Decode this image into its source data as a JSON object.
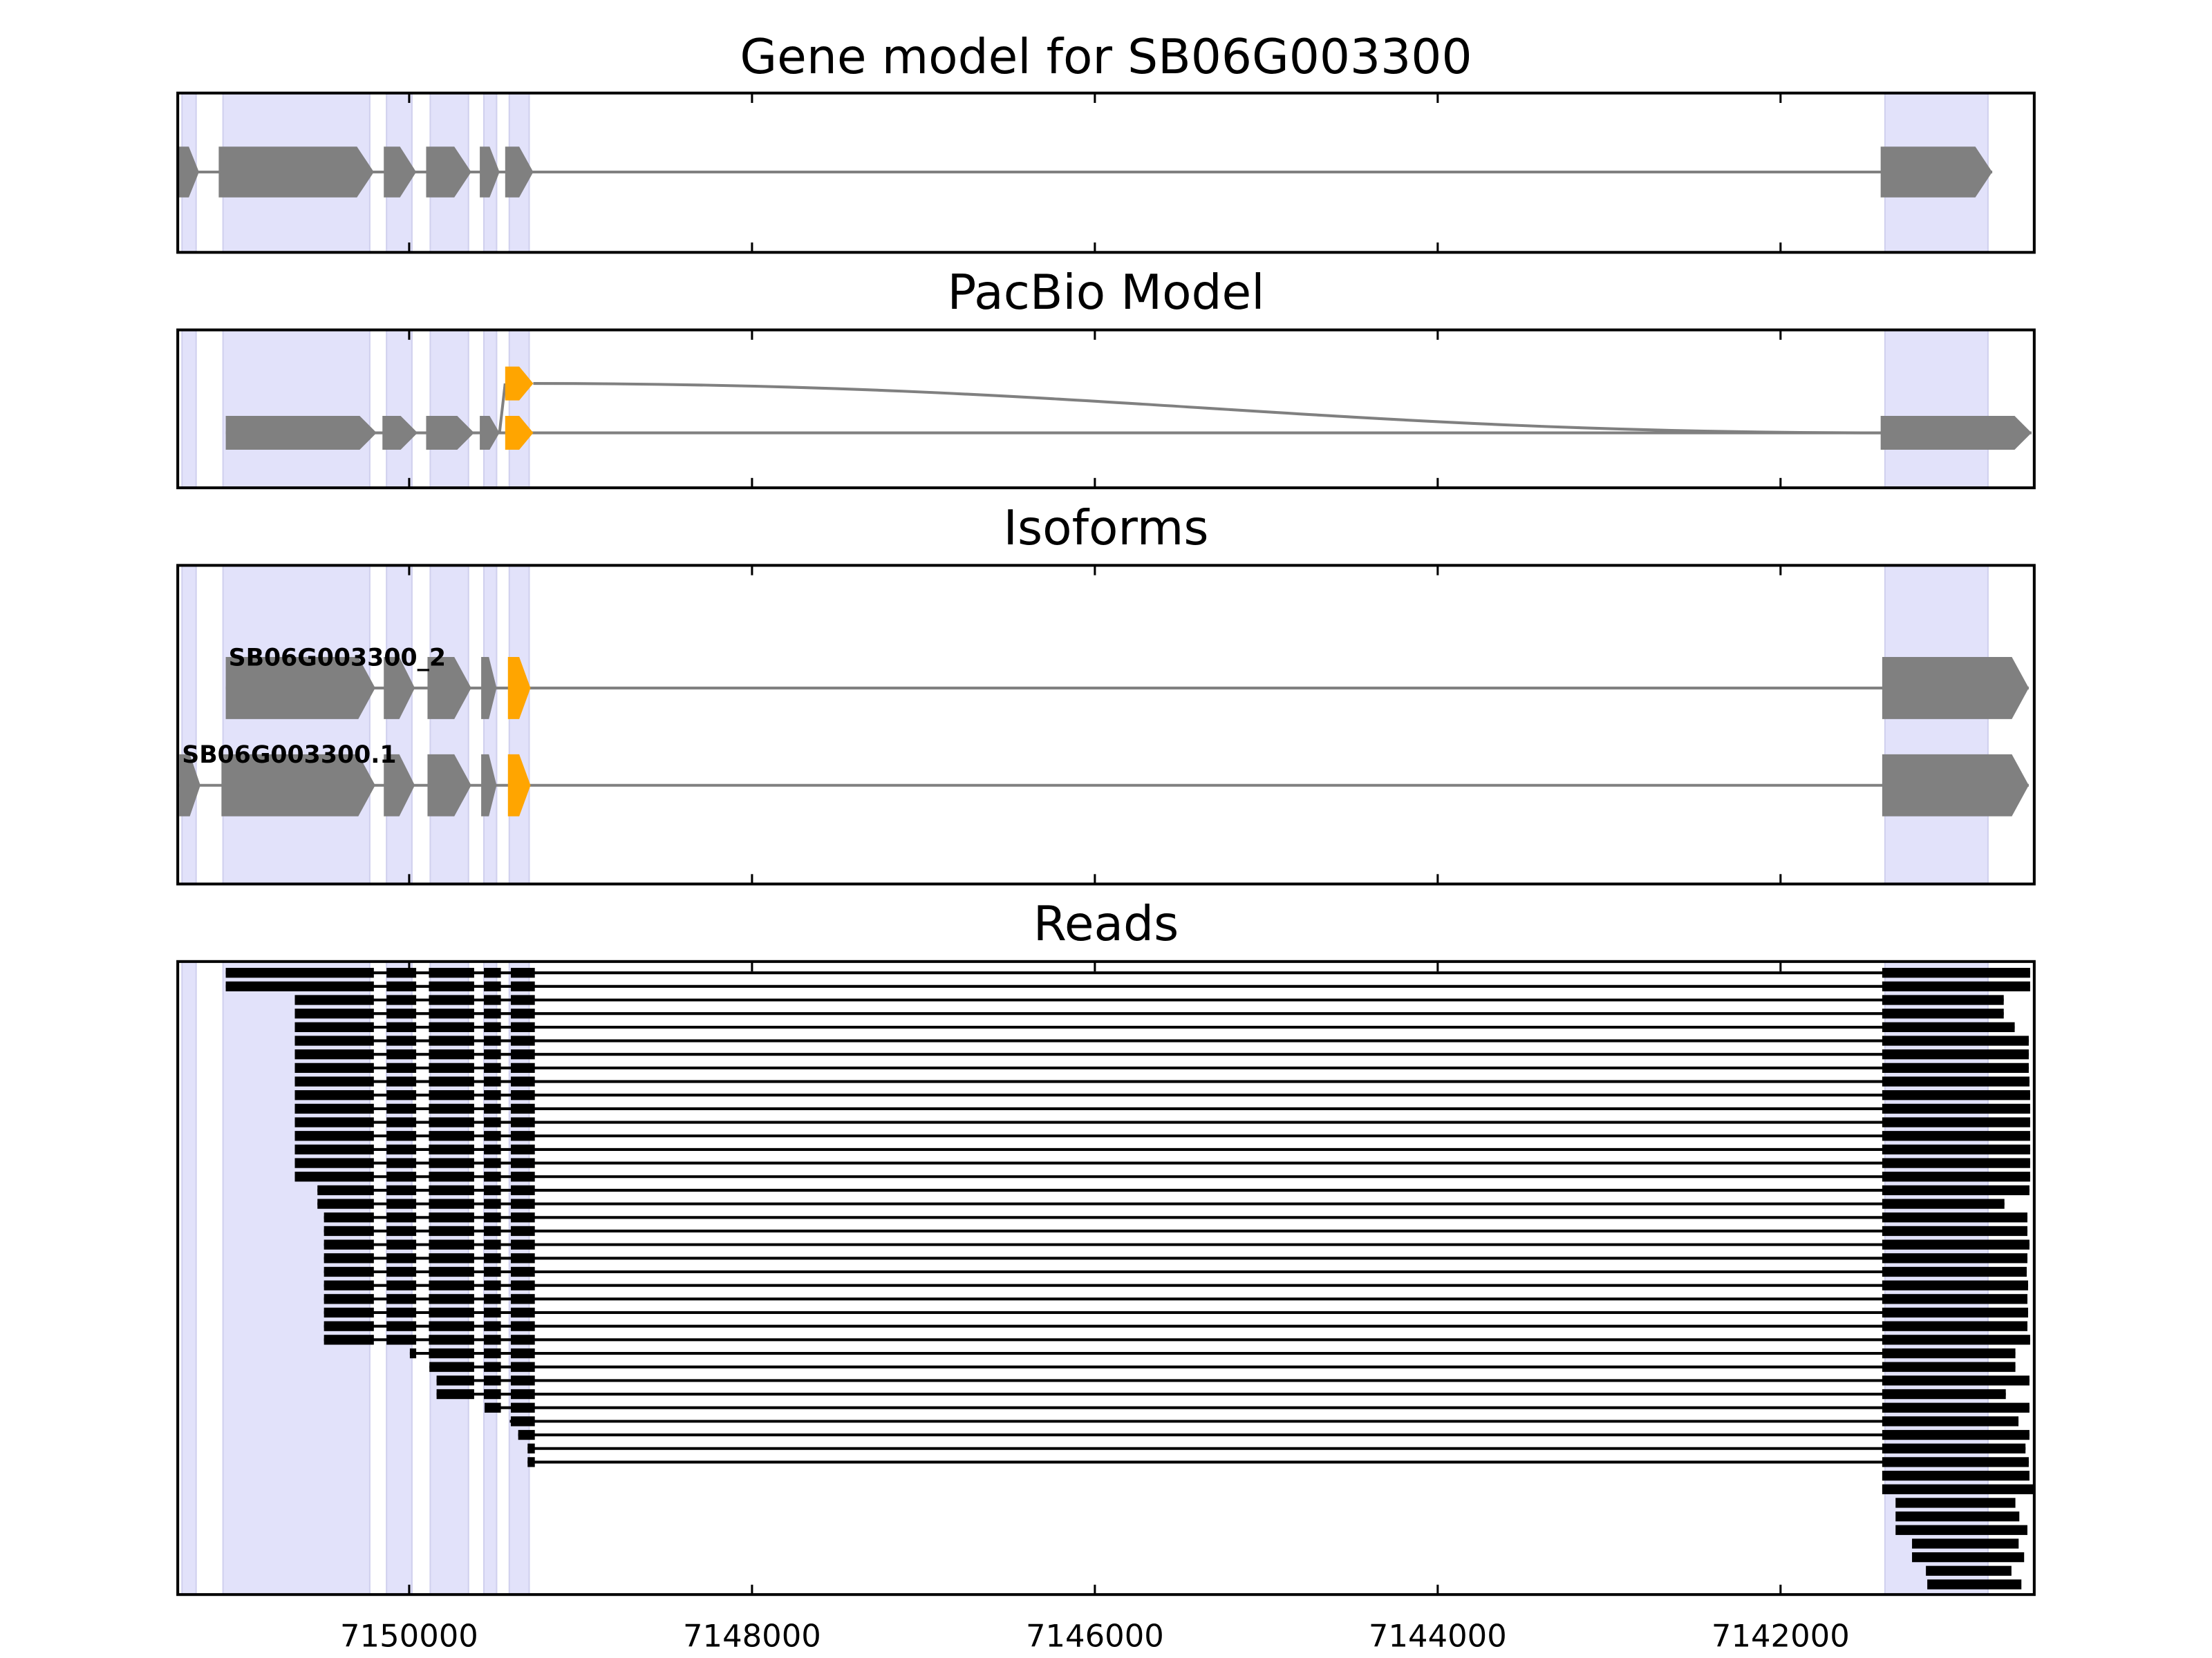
{
  "chart_data": {
    "type": "gene-structure",
    "xlim": [
      7151350,
      7140520
    ],
    "x_ticks": [
      7150000,
      7148000,
      7146000,
      7144000,
      7142000
    ],
    "x_tick_labels": [
      "7150000",
      "7148000",
      "7146000",
      "7144000",
      "7142000"
    ],
    "colors": {
      "exon": "#808080",
      "highlight": "#FFA500",
      "shade": "#E2E2FA",
      "read": "#000000",
      "intron": "#808080"
    },
    "shaded_regions": [
      [
        7151325,
        7151243
      ],
      [
        7151086,
        7150230
      ],
      [
        7150132,
        7149984
      ],
      [
        7149877,
        7149654
      ],
      [
        7149564,
        7149490
      ],
      [
        7149416,
        7149300
      ],
      [
        7141391,
        7140790
      ]
    ],
    "panels": [
      {
        "title": "Gene model for SB06G003300",
        "models": [
          {
            "exons": [
              [
                7151345,
                7151226
              ],
              [
                7151111,
                7150206
              ],
              [
                7150148,
                7149959
              ],
              [
                7149901,
                7149638
              ],
              [
                7149588,
                7149473
              ],
              [
                7149440,
                7149276
              ],
              [
                7141416,
                7140765
              ]
            ],
            "highlight": []
          }
        ]
      },
      {
        "title": "PacBio Model",
        "models": [
          {
            "exons": [
              [
                7149440,
                7149276
              ]
            ],
            "highlight": [
              0
            ],
            "joins_to": [
              7141416,
              1
            ],
            "branch_from": 7149473
          },
          {
            "exons": [
              [
                7151070,
                7150190
              ],
              [
                7150156,
                7149951
              ],
              [
                7149901,
                7149621
              ],
              [
                7149588,
                7149473
              ],
              [
                7149440,
                7149276
              ],
              [
                7141416,
                7140536
              ]
            ],
            "highlight": [
              4
            ]
          }
        ]
      },
      {
        "title": "Isoforms",
        "models": [
          {
            "label": "SB06G003300_2",
            "exons": [
              [
                7151070,
                7150198
              ],
              [
                7150148,
                7149967
              ],
              [
                7149893,
                7149638
              ],
              [
                7149580,
                7149490
              ],
              [
                7149424,
                7149292
              ],
              [
                7141407,
                7140552
              ]
            ],
            "highlight": [
              4
            ]
          },
          {
            "label": "SB06G003300.1",
            "exons": [
              [
                7151341,
                7151218
              ],
              [
                7151095,
                7150198
              ],
              [
                7150148,
                7149967
              ],
              [
                7149893,
                7149638
              ],
              [
                7149580,
                7149490
              ],
              [
                7149424,
                7149292
              ],
              [
                7141407,
                7140552
              ]
            ],
            "highlight": [
              5
            ]
          }
        ]
      },
      {
        "title": "Reads",
        "read_exons": [
          [
            7151400,
            7150206
          ],
          [
            7150132,
            7149959
          ],
          [
            7149885,
            7149621
          ],
          [
            7149564,
            7149465
          ],
          [
            7149407,
            7149267
          ],
          [
            7141407,
            7140400
          ]
        ],
        "reads": [
          {
            "start": 7151070,
            "end": 7140544,
            "spliced": true
          },
          {
            "start": 7151070,
            "end": 7140544,
            "spliced": true
          },
          {
            "start": 7150667,
            "end": 7140698,
            "spliced": true
          },
          {
            "start": 7150667,
            "end": 7140698,
            "spliced": true
          },
          {
            "start": 7150667,
            "end": 7140634,
            "spliced": true
          },
          {
            "start": 7150667,
            "end": 7140552,
            "spliced": true
          },
          {
            "start": 7150667,
            "end": 7140552,
            "spliced": true
          },
          {
            "start": 7150667,
            "end": 7140552,
            "spliced": true
          },
          {
            "start": 7150667,
            "end": 7140548,
            "spliced": true
          },
          {
            "start": 7150667,
            "end": 7140544,
            "spliced": true
          },
          {
            "start": 7150667,
            "end": 7140544,
            "spliced": true
          },
          {
            "start": 7150667,
            "end": 7140544,
            "spliced": true
          },
          {
            "start": 7150667,
            "end": 7140544,
            "spliced": true
          },
          {
            "start": 7150667,
            "end": 7140544,
            "spliced": true
          },
          {
            "start": 7150667,
            "end": 7140544,
            "spliced": true
          },
          {
            "start": 7150667,
            "end": 7140544,
            "spliced": true
          },
          {
            "start": 7150535,
            "end": 7140548,
            "spliced": true
          },
          {
            "start": 7150535,
            "end": 7140694,
            "spliced": true
          },
          {
            "start": 7150497,
            "end": 7140560,
            "spliced": true
          },
          {
            "start": 7150497,
            "end": 7140560,
            "spliced": true
          },
          {
            "start": 7150497,
            "end": 7140548,
            "spliced": true
          },
          {
            "start": 7150497,
            "end": 7140560,
            "spliced": true
          },
          {
            "start": 7150497,
            "end": 7140564,
            "spliced": true
          },
          {
            "start": 7150497,
            "end": 7140556,
            "spliced": true
          },
          {
            "start": 7150497,
            "end": 7140560,
            "spliced": true
          },
          {
            "start": 7150497,
            "end": 7140556,
            "spliced": true
          },
          {
            "start": 7150497,
            "end": 7140560,
            "spliced": true
          },
          {
            "start": 7150497,
            "end": 7140544,
            "spliced": true
          },
          {
            "start": 7149996,
            "end": 7140630,
            "spliced": true
          },
          {
            "start": 7149882,
            "end": 7140630,
            "spliced": true
          },
          {
            "start": 7149840,
            "end": 7140548,
            "spliced": true
          },
          {
            "start": 7149840,
            "end": 7140686,
            "spliced": true
          },
          {
            "start": 7149560,
            "end": 7140548,
            "spliced": true
          },
          {
            "start": 7149413,
            "end": 7140612,
            "spliced": true
          },
          {
            "start": 7149364,
            "end": 7140548,
            "spliced": true
          },
          {
            "start": 7149309,
            "end": 7140571,
            "spliced": true
          },
          {
            "start": 7149309,
            "end": 7140552,
            "spliced": true
          },
          {
            "start": 7141407,
            "end": 7140548,
            "spliced": false
          },
          {
            "start": 7141407,
            "end": 7140519,
            "spliced": false
          },
          {
            "start": 7141329,
            "end": 7140630,
            "spliced": false
          },
          {
            "start": 7141329,
            "end": 7140607,
            "spliced": false
          },
          {
            "start": 7141329,
            "end": 7140560,
            "spliced": false
          },
          {
            "start": 7141233,
            "end": 7140611,
            "spliced": false
          },
          {
            "start": 7141233,
            "end": 7140579,
            "spliced": false
          },
          {
            "start": 7141152,
            "end": 7140653,
            "spliced": false
          },
          {
            "start": 7141144,
            "end": 7140595,
            "spliced": false
          }
        ]
      }
    ]
  }
}
